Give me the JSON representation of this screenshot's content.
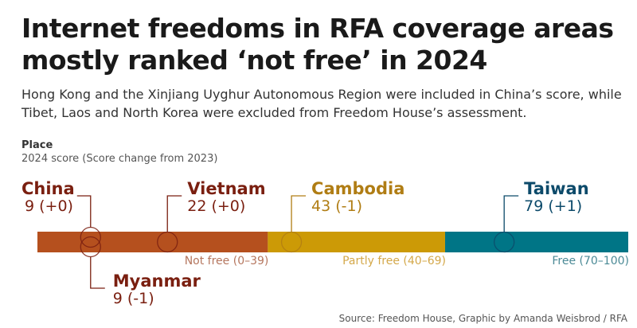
{
  "title": "Internet freedoms in RFA coverage areas mostly ranked ‘not free’ in 2024",
  "subtitle": "Hong Kong and the Xinjiang Uyghur Autonomous Region were included in China’s score, while Tibet, Laos and North Korea were excluded from Freedom House’s assessment.",
  "legend": {
    "title": "Place",
    "subtitle": "2024 score (Score change from 2023)"
  },
  "source": "Source: Freedom House, Graphic by Amanda Weisbrod / RFA",
  "chart_data": {
    "type": "scatter",
    "xlim": [
      0,
      100
    ],
    "bands": [
      {
        "label": "Not free (0–39)",
        "from": 0,
        "to": 39,
        "color": "#b5501e",
        "text_color": "#b5765e"
      },
      {
        "label": "Partly free (40–69)",
        "from": 39,
        "to": 69,
        "color": "#cc9a06",
        "text_color": "#d4a84a"
      },
      {
        "label": "Free (70–100)",
        "from": 69,
        "to": 100,
        "color": "#007586",
        "text_color": "#4b8a96"
      }
    ],
    "points": [
      {
        "name": "China",
        "score": 9,
        "change_label": "9 (+0)",
        "color": "#7a1f10",
        "label_side": "above"
      },
      {
        "name": "Myanmar",
        "score": 9,
        "change_label": "9 (-1)",
        "color": "#7a1f10",
        "label_side": "below"
      },
      {
        "name": "Vietnam",
        "score": 22,
        "change_label": "22 (+0)",
        "color": "#7a1f10",
        "label_side": "above"
      },
      {
        "name": "Cambodia",
        "score": 43,
        "change_label": "43 (-1)",
        "color": "#b07d14",
        "label_side": "above"
      },
      {
        "name": "Taiwan",
        "score": 79,
        "change_label": "79 (+1)",
        "color": "#0c4a6a",
        "label_side": "above"
      }
    ]
  }
}
